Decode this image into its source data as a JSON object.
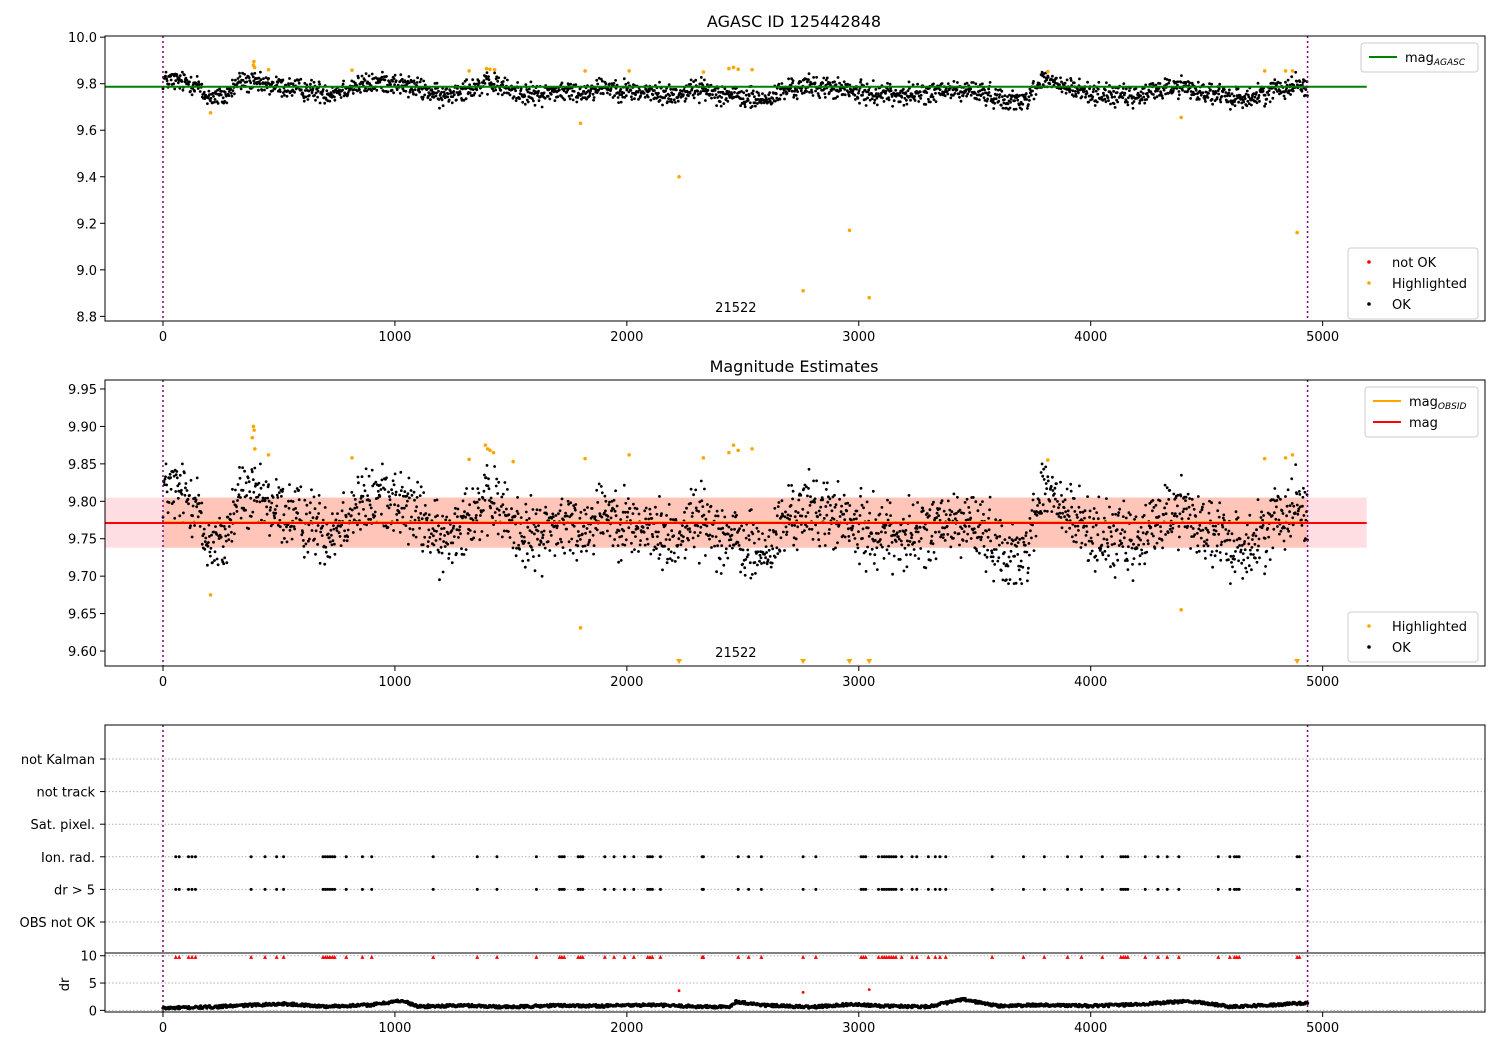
{
  "chart_data": [
    {
      "type": "scatter",
      "title": "AGASC ID 125442848",
      "xlim": [
        -250,
        5700
      ],
      "ylim": [
        8.78,
        10.005
      ],
      "x_ticks": [
        0,
        1000,
        2000,
        3000,
        4000,
        5000
      ],
      "y_ticks": [
        8.8,
        9.0,
        9.2,
        9.4,
        9.6,
        9.8,
        10.0
      ],
      "obsid_label": "21522",
      "obsid_label_x": 2470,
      "vlines_x": [
        0,
        4935
      ],
      "series": [
        {
          "name": "mag_AGASC",
          "kind": "hline",
          "y": 9.787,
          "x_range": [
            -250,
            5190
          ],
          "color": "#008000"
        },
        {
          "name": "not OK",
          "kind": "points",
          "color": "#ff0000",
          "points": []
        },
        {
          "name": "Highlighted",
          "kind": "points",
          "color": "#ffa500",
          "points": [
            [
              205,
              9.675
            ],
            [
              390,
              9.88
            ],
            [
              392,
              9.895
            ],
            [
              395,
              9.87
            ],
            [
              455,
              9.86
            ],
            [
              815,
              9.858
            ],
            [
              1320,
              9.855
            ],
            [
              1395,
              9.865
            ],
            [
              1410,
              9.862
            ],
            [
              1430,
              9.86
            ],
            [
              1800,
              9.63
            ],
            [
              1820,
              9.855
            ],
            [
              2010,
              9.855
            ],
            [
              2225,
              9.4
            ],
            [
              2330,
              9.85
            ],
            [
              2440,
              9.865
            ],
            [
              2460,
              9.87
            ],
            [
              2480,
              9.862
            ],
            [
              2540,
              9.86
            ],
            [
              2760,
              8.91
            ],
            [
              2960,
              9.17
            ],
            [
              3045,
              8.88
            ],
            [
              3815,
              9.852
            ],
            [
              4390,
              9.655
            ],
            [
              4750,
              9.855
            ],
            [
              4840,
              9.855
            ],
            [
              4870,
              9.855
            ],
            [
              4890,
              9.16
            ]
          ]
        },
        {
          "name": "OK",
          "kind": "points",
          "color": "#000000",
          "points": []
        }
      ],
      "segments": [
        [
          0,
          9.82
        ],
        [
          150,
          9.8
        ],
        [
          170,
          9.75
        ],
        [
          260,
          9.74
        ],
        [
          330,
          9.81
        ],
        [
          400,
          9.8
        ],
        [
          480,
          9.79
        ],
        [
          560,
          9.78
        ],
        [
          640,
          9.77
        ],
        [
          720,
          9.76
        ],
        [
          820,
          9.79
        ],
        [
          900,
          9.8
        ],
        [
          960,
          9.81
        ],
        [
          1050,
          9.79
        ],
        [
          1140,
          9.77
        ],
        [
          1200,
          9.74
        ],
        [
          1290,
          9.78
        ],
        [
          1360,
          9.79
        ],
        [
          1430,
          9.8
        ],
        [
          1500,
          9.77
        ],
        [
          1600,
          9.75
        ],
        [
          1700,
          9.77
        ],
        [
          1800,
          9.76
        ],
        [
          1900,
          9.79
        ],
        [
          2000,
          9.77
        ],
        [
          2100,
          9.76
        ],
        [
          2200,
          9.75
        ],
        [
          2300,
          9.78
        ],
        [
          2400,
          9.76
        ],
        [
          2500,
          9.74
        ],
        [
          2600,
          9.73
        ],
        [
          2700,
          9.78
        ],
        [
          2800,
          9.79
        ],
        [
          2900,
          9.78
        ],
        [
          3000,
          9.76
        ],
        [
          3100,
          9.76
        ],
        [
          3200,
          9.75
        ],
        [
          3300,
          9.76
        ],
        [
          3400,
          9.77
        ],
        [
          3500,
          9.77
        ],
        [
          3600,
          9.74
        ],
        [
          3700,
          9.72
        ],
        [
          3800,
          9.82
        ],
        [
          3900,
          9.78
        ],
        [
          4000,
          9.76
        ],
        [
          4100,
          9.75
        ],
        [
          4200,
          9.74
        ],
        [
          4300,
          9.78
        ],
        [
          4400,
          9.79
        ],
        [
          4500,
          9.76
        ],
        [
          4600,
          9.74
        ],
        [
          4700,
          9.74
        ],
        [
          4800,
          9.78
        ],
        [
          4900,
          9.8
        ],
        [
          4935,
          9.79
        ]
      ],
      "legend_top": [
        {
          "label": "mag",
          "sub": "AGASC",
          "color": "#008000",
          "kind": "line"
        }
      ],
      "legend_bottom": [
        {
          "label": "not OK",
          "color": "#ff0000",
          "kind": "dot"
        },
        {
          "label": "Highlighted",
          "color": "#ffa500",
          "kind": "dot"
        },
        {
          "label": "OK",
          "color": "#000000",
          "kind": "dot"
        }
      ]
    },
    {
      "type": "scatter",
      "title": "Magnitude Estimates",
      "xlim": [
        -250,
        5700
      ],
      "ylim": [
        9.58,
        9.962
      ],
      "x_ticks": [
        0,
        1000,
        2000,
        3000,
        4000,
        5000
      ],
      "y_ticks": [
        9.6,
        9.65,
        9.7,
        9.75,
        9.8,
        9.85,
        9.9,
        9.95
      ],
      "obsid_label": "21522",
      "obsid_label_x": 2470,
      "vlines_x": [
        0,
        4935
      ],
      "band": {
        "y0": 9.738,
        "y1": 9.805,
        "x_range": [
          -250,
          5190
        ],
        "color": "#ffb6c1"
      },
      "band_obsid": {
        "y0": 9.738,
        "y1": 9.805,
        "x_range": [
          0,
          4935
        ],
        "color": "#ffa07a"
      },
      "series": [
        {
          "name": "mag_OBSID",
          "kind": "hline",
          "y": 9.772,
          "x_range": [
            0,
            4935
          ],
          "color": "#ffa500"
        },
        {
          "name": "mag",
          "kind": "hline",
          "y": 9.771,
          "x_range": [
            -250,
            5190
          ],
          "color": "#ff0000"
        },
        {
          "name": "Highlighted",
          "kind": "points",
          "color": "#ffa500",
          "points": [
            [
              205,
              9.675
            ],
            [
              385,
              9.885
            ],
            [
              390,
              9.9
            ],
            [
              393,
              9.895
            ],
            [
              396,
              9.87
            ],
            [
              455,
              9.862
            ],
            [
              815,
              9.858
            ],
            [
              1320,
              9.856
            ],
            [
              1390,
              9.875
            ],
            [
              1400,
              9.87
            ],
            [
              1410,
              9.868
            ],
            [
              1425,
              9.865
            ],
            [
              1510,
              9.853
            ],
            [
              1800,
              9.631
            ],
            [
              1820,
              9.857
            ],
            [
              2010,
              9.862
            ],
            [
              2330,
              9.858
            ],
            [
              2440,
              9.865
            ],
            [
              2460,
              9.875
            ],
            [
              2480,
              9.868
            ],
            [
              2540,
              9.87
            ],
            [
              3815,
              9.855
            ],
            [
              4390,
              9.655
            ],
            [
              4750,
              9.857
            ],
            [
              4840,
              9.858
            ],
            [
              4870,
              9.862
            ]
          ]
        },
        {
          "name": "OK",
          "kind": "points",
          "color": "#000000",
          "points": []
        }
      ],
      "clipped_markers_x": [
        2225,
        2760,
        2960,
        3045,
        4890
      ],
      "legend_top": [
        {
          "label": "mag",
          "sub": "OBSID",
          "color": "#ffa500",
          "kind": "line"
        },
        {
          "label": "mag",
          "sub": "",
          "color": "#ff0000",
          "kind": "line"
        }
      ],
      "legend_bottom": [
        {
          "label": "Highlighted",
          "color": "#ffa500",
          "kind": "dot"
        },
        {
          "label": "OK",
          "color": "#000000",
          "kind": "dot"
        }
      ]
    },
    {
      "type": "scatter",
      "title": "",
      "xlim": [
        -250,
        5700
      ],
      "x_ticks": [
        0,
        1000,
        2000,
        3000,
        4000,
        5000
      ],
      "vlines_x": [
        0,
        4935
      ],
      "flag_rows": [
        "not Kalman",
        "not track",
        "Sat. pixel.",
        "Ion. rad.",
        "dr > 5",
        "OBS not OK"
      ],
      "flag_points_x": [
        55,
        70,
        110,
        125,
        140,
        380,
        440,
        490,
        520,
        690,
        700,
        710,
        720,
        730,
        740,
        790,
        860,
        900,
        1165,
        1355,
        1440,
        1610,
        1710,
        1720,
        1730,
        1790,
        1800,
        1810,
        1905,
        1945,
        1990,
        2030,
        2090,
        2100,
        2110,
        2145,
        2325,
        2330,
        2480,
        2525,
        2580,
        2760,
        2815,
        3010,
        3020,
        3030,
        3085,
        3100,
        3110,
        3120,
        3130,
        3140,
        3150,
        3160,
        3185,
        3230,
        3250,
        3300,
        3330,
        3350,
        3375,
        3575,
        3710,
        3800,
        3900,
        3960,
        4050,
        4130,
        4140,
        4150,
        4160,
        4235,
        4290,
        4330,
        4380,
        4550,
        4600,
        4620,
        4630,
        4640,
        4890,
        4900
      ],
      "dr_ylabel": "dr",
      "dr_ylim": [
        -0.3,
        10.5
      ],
      "dr_ticks": [
        0,
        5,
        10
      ],
      "dr_high_points": [
        [
          2225,
          3.6
        ],
        [
          2760,
          3.3
        ],
        [
          3045,
          3.8
        ]
      ],
      "dr_line": [
        [
          0,
          0.4
        ],
        [
          200,
          0.6
        ],
        [
          400,
          1.0
        ],
        [
          520,
          1.2
        ],
        [
          700,
          0.7
        ],
        [
          900,
          1.0
        ],
        [
          1030,
          1.8
        ],
        [
          1100,
          0.7
        ],
        [
          1300,
          0.9
        ],
        [
          1500,
          0.6
        ],
        [
          1700,
          0.9
        ],
        [
          1900,
          0.8
        ],
        [
          2100,
          1.0
        ],
        [
          2300,
          0.7
        ],
        [
          2440,
          0.6
        ],
        [
          2470,
          1.6
        ],
        [
          2600,
          0.9
        ],
        [
          2800,
          0.6
        ],
        [
          2960,
          1.1
        ],
        [
          3100,
          0.8
        ],
        [
          3300,
          0.7
        ],
        [
          3450,
          2.0
        ],
        [
          3600,
          0.8
        ],
        [
          3800,
          1.0
        ],
        [
          4000,
          0.8
        ],
        [
          4200,
          1.1
        ],
        [
          4430,
          1.7
        ],
        [
          4600,
          0.7
        ],
        [
          4800,
          1.0
        ],
        [
          4935,
          1.4
        ]
      ]
    }
  ]
}
